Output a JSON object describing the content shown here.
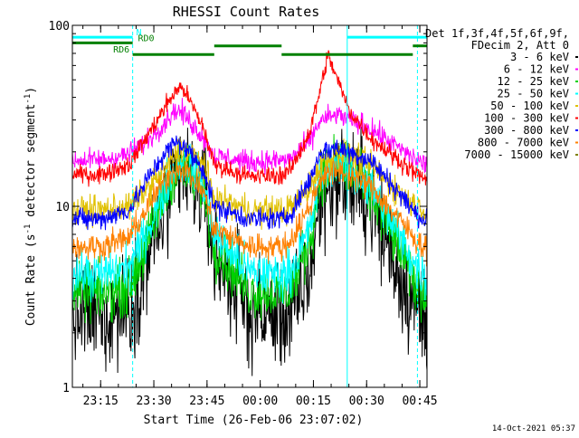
{
  "chart_data": {
    "type": "line",
    "title": "RHESSI Count Rates",
    "xlabel": "Start Time (26-Feb-06 23:07:02)",
    "ylabel_parts": [
      "Count Rate (s",
      "-1",
      " detector segment",
      "-1",
      ")"
    ],
    "yscale": "log",
    "ylim": [
      1,
      100
    ],
    "y_ticks": [
      "1",
      "10",
      "100"
    ],
    "x_range_minutes_after_start": [
      0,
      100
    ],
    "x_ticks": [
      {
        "label": "23:15",
        "minute": 7.97
      },
      {
        "label": "23:30",
        "minute": 22.97
      },
      {
        "label": "23:45",
        "minute": 37.97
      },
      {
        "label": "00:00",
        "minute": 52.97
      },
      {
        "label": "00:15",
        "minute": 67.97
      },
      {
        "label": "00:30",
        "minute": 82.97
      },
      {
        "label": "00:45",
        "minute": 97.97
      }
    ],
    "legend": {
      "header": [
        "Det 1f,3f,4f,5f,6f,9f,",
        "FDecim 2, Att 0"
      ],
      "position": "right"
    },
    "series": [
      {
        "name": "3 - 6 keV",
        "color": "#000000",
        "noise": 0.6,
        "x": [
          0,
          8,
          16,
          22,
          26,
          29,
          31,
          37,
          40,
          50,
          60,
          62,
          67,
          70,
          75,
          84,
          92,
          97,
          100
        ],
        "y": [
          2.5,
          2.5,
          2.7,
          5.8,
          9.4,
          13,
          15,
          12,
          5.5,
          2.6,
          2.5,
          2.6,
          4.4,
          11,
          15,
          11,
          4.4,
          2.7,
          2.4
        ]
      },
      {
        "name": "6 - 12 keV",
        "color": "#ff00ff",
        "noise": 0.12,
        "x": [
          0,
          8,
          16,
          22,
          26,
          29,
          31,
          37,
          40,
          50,
          60,
          62,
          67,
          70,
          75,
          84,
          92,
          97,
          100
        ],
        "y": [
          18,
          18,
          19.5,
          24,
          29,
          34,
          33,
          24,
          19,
          17.5,
          18,
          18.5,
          23,
          30,
          32,
          27,
          21,
          18,
          17
        ]
      },
      {
        "name": "12 - 25 keV",
        "color": "#00d000",
        "noise": 0.3,
        "x": [
          0,
          8,
          16,
          22,
          26,
          29,
          31,
          37,
          40,
          50,
          60,
          62,
          67,
          70,
          75,
          84,
          92,
          97,
          100
        ],
        "y": [
          3.3,
          3.3,
          3.6,
          7,
          11.5,
          15.5,
          17,
          12.5,
          6,
          3.4,
          3.3,
          3.6,
          6.5,
          14,
          17.5,
          12,
          6,
          3.6,
          3.2
        ]
      },
      {
        "name": "25 - 50 keV",
        "color": "#00ffff",
        "noise": 0.25,
        "x": [
          0,
          8,
          16,
          22,
          26,
          29,
          31,
          37,
          40,
          50,
          60,
          62,
          67,
          70,
          75,
          84,
          92,
          97,
          100
        ],
        "y": [
          4.2,
          4.2,
          4.6,
          8,
          12.5,
          16.5,
          18,
          13.5,
          7,
          4.3,
          4.2,
          4.6,
          7.5,
          15,
          18,
          13,
          7,
          4.6,
          4
        ]
      },
      {
        "name": "50 - 100 keV",
        "color": "#e0c000",
        "noise": 0.16,
        "x": [
          0,
          8,
          16,
          22,
          26,
          29,
          31,
          37,
          40,
          50,
          60,
          62,
          67,
          70,
          75,
          84,
          92,
          97,
          100
        ],
        "y": [
          9.5,
          9.5,
          10,
          13,
          16,
          19,
          21,
          17,
          11,
          9.5,
          9.5,
          10,
          13,
          17,
          20,
          17,
          12,
          10,
          9.5
        ]
      },
      {
        "name": "100 - 300 keV",
        "color": "#ff0000",
        "noise": 0.1,
        "x": [
          0,
          8,
          16,
          22,
          26,
          29,
          31,
          37,
          40,
          50,
          60,
          62,
          67,
          70,
          72,
          74,
          78,
          84,
          92,
          97,
          100
        ],
        "y": [
          15,
          15,
          17,
          26,
          35,
          43,
          46,
          27,
          17,
          14.5,
          15,
          16.5,
          26,
          45,
          68,
          55,
          34,
          24,
          18,
          15,
          14
        ]
      },
      {
        "name": "300 - 800 keV",
        "color": "#0000ff",
        "noise": 0.12,
        "x": [
          0,
          8,
          16,
          22,
          26,
          29,
          31,
          37,
          40,
          50,
          60,
          62,
          67,
          70,
          75,
          84,
          92,
          97,
          100
        ],
        "y": [
          8.5,
          8.5,
          9.5,
          15,
          19.5,
          22.5,
          22,
          16,
          10,
          8.5,
          8.5,
          9.5,
          14,
          20,
          21,
          18,
          12,
          9,
          8.3
        ]
      },
      {
        "name": "800 - 7000 keV",
        "color": "#ff8000",
        "noise": 0.15,
        "x": [
          0,
          8,
          16,
          22,
          26,
          29,
          31,
          37,
          40,
          50,
          60,
          62,
          67,
          70,
          75,
          84,
          92,
          97,
          100
        ],
        "y": [
          6,
          6,
          6.7,
          10.5,
          14,
          16,
          16.5,
          12,
          7.5,
          6,
          6,
          6.7,
          10,
          14.5,
          16,
          13,
          8.5,
          6.5,
          5.8
        ]
      },
      {
        "name": "7000 - 15000 keV",
        "color": "#808000",
        "noise": 0.0,
        "x": [],
        "y": []
      }
    ],
    "annotations": {
      "vertical_lines_solid": [
        {
          "minute": 0,
          "color": "#00ffff"
        },
        {
          "minute": 77.5,
          "color": "#00ffff"
        }
      ],
      "vertical_lines_dashed": [
        {
          "minute": 17.0,
          "color": "#00ffff"
        },
        {
          "minute": 97.3,
          "color": "#00ffff"
        }
      ],
      "bars": [
        {
          "label": "N",
          "color": "#00ffff",
          "y_value": 86,
          "segments": [
            [
              0,
              17.0
            ],
            [
              77.5,
              100
            ]
          ],
          "label_at_minute": 18.0
        },
        {
          "label": "RD0",
          "color": "#008000",
          "y_value": 80,
          "segments": [
            [
              0,
              17.0
            ]
          ],
          "label_at_minute": 18.5
        },
        {
          "label": null,
          "color": "#008000",
          "y_value": 77,
          "segments": [
            [
              40,
              59
            ],
            [
              96,
              100
            ]
          ]
        },
        {
          "label": "RD6",
          "color": "#008000",
          "y_value": 69,
          "segments": [
            [
              17.0,
              40
            ],
            [
              59,
              96
            ]
          ],
          "label_at_minute": 11.5
        }
      ]
    }
  },
  "footer": {
    "timestamp": "14-Oct-2021 05:37"
  }
}
